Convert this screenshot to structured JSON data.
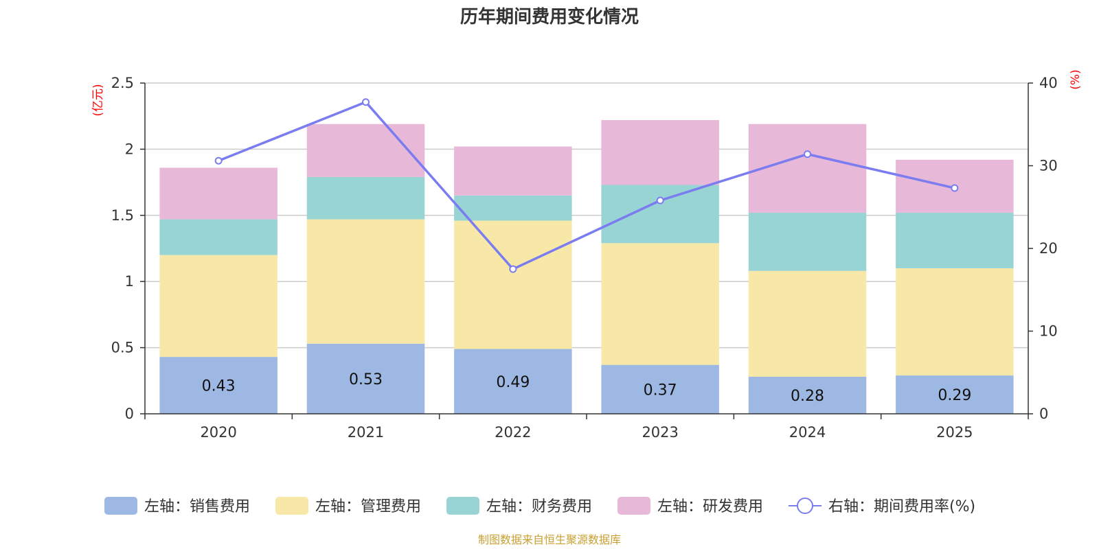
{
  "chart_data": {
    "type": "bar",
    "stacked": true,
    "title": "历年期间费用变化情况",
    "categories": [
      "2020",
      "2021",
      "2022",
      "2023",
      "2024",
      "2025"
    ],
    "left_axis": {
      "unit_label": "(亿元)",
      "ylim": [
        0,
        2.5
      ],
      "ticks": [
        "0",
        "0.5",
        "1",
        "1.5",
        "2",
        "2.5"
      ],
      "tick_values": [
        0,
        0.5,
        1,
        1.5,
        2,
        2.5
      ]
    },
    "right_axis": {
      "unit_label": "(%)",
      "ylim": [
        0,
        40
      ],
      "ticks": [
        "0",
        "10",
        "20",
        "30",
        "40"
      ],
      "tick_values": [
        0,
        10,
        20,
        30,
        40
      ]
    },
    "series": [
      {
        "name": "左轴：销售费用",
        "color": "#9db8e2",
        "values": [
          0.43,
          0.53,
          0.49,
          0.37,
          0.28,
          0.29
        ],
        "labels": [
          "0.43",
          "0.53",
          "0.49",
          "0.37",
          "0.28",
          "0.29"
        ]
      },
      {
        "name": "左轴：管理费用",
        "color": "#f8e8a8",
        "values": [
          0.77,
          0.94,
          0.97,
          0.92,
          0.8,
          0.81
        ]
      },
      {
        "name": "左轴：财务费用",
        "color": "#98d4d4",
        "values": [
          0.27,
          0.32,
          0.19,
          0.44,
          0.44,
          0.42
        ]
      },
      {
        "name": "左轴：研发费用",
        "color": "#e8b8d8",
        "values": [
          0.39,
          0.4,
          0.37,
          0.49,
          0.67,
          0.4
        ]
      }
    ],
    "line_series": {
      "name": "右轴：期间费用率(%)",
      "color": "#7a7cf0",
      "values": [
        30.6,
        37.7,
        17.5,
        25.8,
        31.4,
        27.3
      ]
    },
    "source": "制图数据来自恒生聚源数据库"
  }
}
